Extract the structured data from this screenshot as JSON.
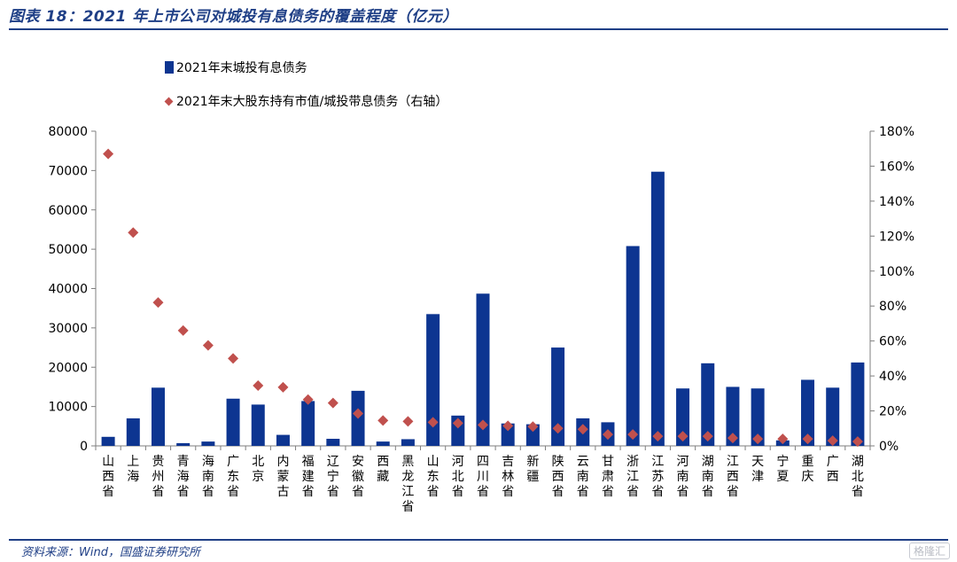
{
  "header": {
    "title": "图表 18：2021 年上市公司对城投有息债务的覆盖程度（亿元）"
  },
  "footer": {
    "source": "资料来源：Wind，国盛证券研究所",
    "watermark": "格隆汇"
  },
  "colors": {
    "bar": "#0d3591",
    "marker": "#c0504d",
    "title": "#1f3f86",
    "axis": "#7f7f7f"
  },
  "chart_data": {
    "type": "bar",
    "title": "",
    "legend_placement": "top-left",
    "categories": [
      "山西省",
      "上海",
      "贵州省",
      "青海省",
      "海南省",
      "广东省",
      "北京",
      "内蒙古",
      "福建省",
      "辽宁省",
      "安徽省",
      "西藏",
      "黑龙江省",
      "山东省",
      "河北省",
      "四川省",
      "吉林省",
      "新疆",
      "陕西省",
      "云南省",
      "甘肃省",
      "浙江省",
      "江苏省",
      "河南省",
      "湖南省",
      "江西省",
      "天津",
      "宁夏",
      "重庆",
      "广西",
      "湖北省"
    ],
    "series": [
      {
        "name": "2021年末城投有息债务",
        "type": "bar",
        "axis": "left",
        "values": [
          2300,
          7000,
          14800,
          700,
          1100,
          12000,
          10500,
          2800,
          11400,
          1800,
          14000,
          1100,
          1700,
          33500,
          7700,
          38700,
          5700,
          5500,
          25000,
          7000,
          6000,
          50800,
          69700,
          14600,
          21000,
          15000,
          14600,
          1400,
          16800,
          14800,
          21200
        ]
      },
      {
        "name": "2021年末大股东持有市值/城投带息债务（右轴）",
        "type": "scatter",
        "axis": "right",
        "values": [
          1.67,
          1.22,
          0.82,
          0.66,
          0.575,
          0.5,
          0.345,
          0.335,
          0.265,
          0.245,
          0.185,
          0.145,
          0.14,
          0.135,
          0.13,
          0.12,
          0.115,
          0.11,
          0.1,
          0.095,
          0.065,
          0.065,
          0.055,
          0.055,
          0.055,
          0.045,
          0.04,
          0.04,
          0.04,
          0.03,
          0.025
        ]
      }
    ],
    "y_left": {
      "min": 0,
      "max": 80000,
      "ticks": [
        "0",
        "10000",
        "20000",
        "30000",
        "40000",
        "50000",
        "60000",
        "70000",
        "80000"
      ]
    },
    "y_right": {
      "min": 0,
      "max": 1.8,
      "ticks": [
        "0%",
        "20%",
        "40%",
        "60%",
        "80%",
        "100%",
        "120%",
        "140%",
        "160%",
        "180%"
      ]
    },
    "grid": false
  }
}
